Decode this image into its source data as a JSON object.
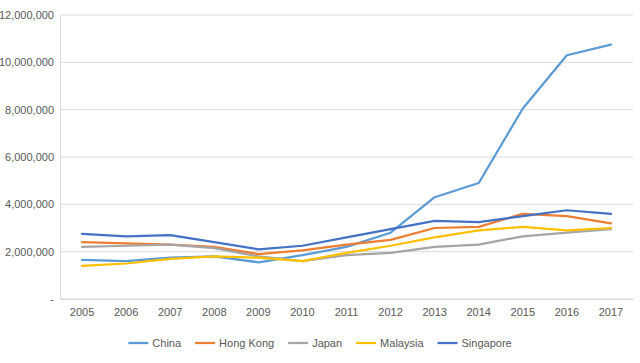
{
  "chart_data": {
    "type": "line",
    "categories": [
      "2005",
      "2006",
      "2007",
      "2008",
      "2009",
      "2010",
      "2011",
      "2012",
      "2013",
      "2014",
      "2015",
      "2016",
      "2017"
    ],
    "series": [
      {
        "name": "China",
        "color": "#5b9bd5",
        "values": [
          1650000,
          1600000,
          1750000,
          1800000,
          1550000,
          1850000,
          2200000,
          2800000,
          4300000,
          4900000,
          8050000,
          10300000,
          10750000
        ]
      },
      {
        "name": "Hong Kong",
        "color": "#ed7d31",
        "values": [
          2400000,
          2350000,
          2300000,
          2200000,
          1900000,
          2050000,
          2300000,
          2500000,
          3000000,
          3050000,
          3600000,
          3500000,
          3200000
        ]
      },
      {
        "name": "Japan",
        "color": "#a5a5a5",
        "values": [
          2200000,
          2250000,
          2300000,
          2150000,
          1800000,
          1600000,
          1850000,
          1950000,
          2200000,
          2300000,
          2650000,
          2800000,
          2950000
        ]
      },
      {
        "name": "Malaysia",
        "color": "#ffc000",
        "values": [
          1400000,
          1500000,
          1700000,
          1800000,
          1750000,
          1600000,
          1950000,
          2250000,
          2600000,
          2900000,
          3050000,
          2900000,
          3000000
        ]
      },
      {
        "name": "Singapore",
        "color": "#4472c4",
        "values": [
          2750000,
          2650000,
          2700000,
          2400000,
          2100000,
          2250000,
          2600000,
          2950000,
          3300000,
          3250000,
          3500000,
          3750000,
          3600000
        ]
      }
    ],
    "ylim": [
      0,
      12000000
    ],
    "yticks": [
      {
        "value": 0,
        "label": "-"
      },
      {
        "value": 2000000,
        "label": "2,000,000"
      },
      {
        "value": 4000000,
        "label": "4,000,000"
      },
      {
        "value": 6000000,
        "label": "6,000,000"
      },
      {
        "value": 8000000,
        "label": "8,000,000"
      },
      {
        "value": 10000000,
        "label": "10,000,000"
      },
      {
        "value": 12000000,
        "label": "12,000,000"
      }
    ],
    "grid": true,
    "legend": "bottom"
  }
}
